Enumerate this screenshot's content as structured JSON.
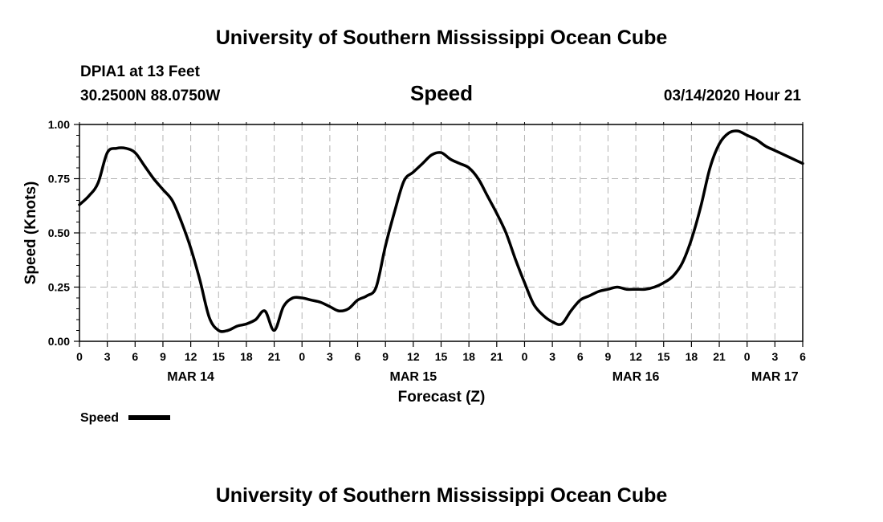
{
  "header": {
    "title": "University of Southern Mississippi Ocean Cube",
    "station": "DPIA1 at 13 Feet",
    "coords": "30.2500N 88.0750W",
    "variable": "Speed",
    "datetime": "03/14/2020 Hour 21"
  },
  "footer": {
    "title": "University of Southern Mississippi Ocean Cube"
  },
  "legend": {
    "label": "Speed"
  },
  "colors": {
    "line": "#000000",
    "grid": "#b4b4b4"
  },
  "chart_data": {
    "type": "line",
    "title": "Speed",
    "xlabel": "Forecast (Z)",
    "ylabel": "Speed (Knots)",
    "xlim": [
      0,
      78
    ],
    "ylim": [
      0,
      1
    ],
    "x_unit": "hours since 03/14 00Z",
    "grid": true,
    "legend_position": "bottom-left",
    "x_ticks": [
      {
        "x": 0,
        "label": "0"
      },
      {
        "x": 3,
        "label": "3"
      },
      {
        "x": 6,
        "label": "6"
      },
      {
        "x": 9,
        "label": "9"
      },
      {
        "x": 12,
        "label": "12"
      },
      {
        "x": 15,
        "label": "15"
      },
      {
        "x": 18,
        "label": "18"
      },
      {
        "x": 21,
        "label": "21"
      },
      {
        "x": 24,
        "label": "0"
      },
      {
        "x": 27,
        "label": "3"
      },
      {
        "x": 30,
        "label": "6"
      },
      {
        "x": 33,
        "label": "9"
      },
      {
        "x": 36,
        "label": "12"
      },
      {
        "x": 39,
        "label": "15"
      },
      {
        "x": 42,
        "label": "18"
      },
      {
        "x": 45,
        "label": "21"
      },
      {
        "x": 48,
        "label": "0"
      },
      {
        "x": 51,
        "label": "3"
      },
      {
        "x": 54,
        "label": "6"
      },
      {
        "x": 57,
        "label": "9"
      },
      {
        "x": 60,
        "label": "12"
      },
      {
        "x": 63,
        "label": "15"
      },
      {
        "x": 66,
        "label": "18"
      },
      {
        "x": 69,
        "label": "21"
      },
      {
        "x": 72,
        "label": "0"
      },
      {
        "x": 75,
        "label": "3"
      },
      {
        "x": 78,
        "label": "6"
      }
    ],
    "y_ticks": [
      {
        "y": 0,
        "label": "0.00"
      },
      {
        "y": 0.25,
        "label": "0.25"
      },
      {
        "y": 0.5,
        "label": "0.50"
      },
      {
        "y": 0.75,
        "label": "0.75"
      },
      {
        "y": 1.0,
        "label": "1.00"
      }
    ],
    "date_labels": [
      {
        "x": 12,
        "label": "MAR 14"
      },
      {
        "x": 36,
        "label": "MAR 15"
      },
      {
        "x": 60,
        "label": "MAR 16"
      },
      {
        "x": 75,
        "label": "MAR 17"
      }
    ],
    "series": [
      {
        "name": "Speed",
        "x": [
          0,
          1,
          2,
          3,
          4,
          5,
          6,
          7,
          8,
          9,
          10,
          11,
          12,
          13,
          14,
          15,
          16,
          17,
          18,
          19,
          20,
          21,
          22,
          23,
          24,
          25,
          26,
          27,
          28,
          29,
          30,
          31,
          32,
          33,
          34,
          35,
          36,
          37,
          38,
          39,
          40,
          41,
          42,
          43,
          44,
          45,
          46,
          47,
          48,
          49,
          50,
          51,
          52,
          53,
          54,
          55,
          56,
          57,
          58,
          59,
          60,
          61,
          62,
          63,
          64,
          65,
          66,
          67,
          68,
          69,
          70,
          71,
          72,
          73,
          74,
          75,
          76,
          77,
          78
        ],
        "values": [
          0.63,
          0.67,
          0.73,
          0.87,
          0.89,
          0.89,
          0.87,
          0.81,
          0.75,
          0.7,
          0.65,
          0.55,
          0.43,
          0.28,
          0.11,
          0.05,
          0.05,
          0.07,
          0.08,
          0.1,
          0.14,
          0.05,
          0.16,
          0.2,
          0.2,
          0.19,
          0.18,
          0.16,
          0.14,
          0.15,
          0.19,
          0.21,
          0.25,
          0.44,
          0.6,
          0.74,
          0.78,
          0.82,
          0.86,
          0.87,
          0.84,
          0.82,
          0.8,
          0.75,
          0.67,
          0.59,
          0.5,
          0.38,
          0.27,
          0.17,
          0.12,
          0.09,
          0.08,
          0.14,
          0.19,
          0.21,
          0.23,
          0.24,
          0.25,
          0.24,
          0.24,
          0.24,
          0.25,
          0.27,
          0.3,
          0.36,
          0.47,
          0.62,
          0.8,
          0.91,
          0.96,
          0.97,
          0.95,
          0.93,
          0.9,
          0.88,
          0.86,
          0.84,
          0.82
        ]
      }
    ]
  }
}
